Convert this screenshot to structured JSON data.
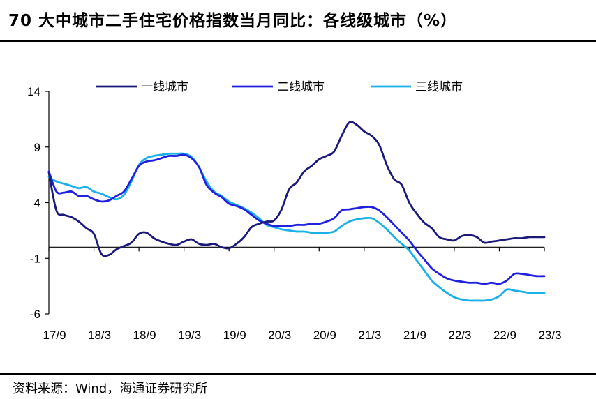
{
  "title": "70 大中城市二手住宅价格指数当月同比：各线级城市（%）",
  "source": "资料来源：Wind，海通证券研究所",
  "chart_data": {
    "type": "line",
    "title": "70 大中城市二手住宅价格指数当月同比：各线级城市（%）",
    "xlabel": "",
    "ylabel": "",
    "ylim": [
      -6,
      14
    ],
    "yticks": [
      14,
      9,
      4,
      -1,
      -6
    ],
    "x_tick_labels": [
      "17/9",
      "18/3",
      "18/9",
      "19/3",
      "19/9",
      "20/3",
      "20/9",
      "21/3",
      "21/9",
      "22/3",
      "22/9",
      "23/3"
    ],
    "x": [
      "17/9",
      "17/10",
      "17/11",
      "17/12",
      "18/1",
      "18/2",
      "18/3",
      "18/4",
      "18/5",
      "18/6",
      "18/7",
      "18/8",
      "18/9",
      "18/10",
      "18/11",
      "18/12",
      "19/1",
      "19/2",
      "19/3",
      "19/4",
      "19/5",
      "19/6",
      "19/7",
      "19/8",
      "19/9",
      "19/10",
      "19/11",
      "19/12",
      "20/1",
      "20/2",
      "20/3",
      "20/4",
      "20/5",
      "20/6",
      "20/7",
      "20/8",
      "20/9",
      "20/10",
      "20/11",
      "20/12",
      "21/1",
      "21/2",
      "21/3",
      "21/4",
      "21/5",
      "21/6",
      "21/7",
      "21/8",
      "21/9",
      "21/10",
      "21/11",
      "21/12",
      "22/1",
      "22/2",
      "22/3",
      "22/4",
      "22/5",
      "22/6",
      "22/7",
      "22/8",
      "22/9",
      "22/10",
      "22/11",
      "22/12",
      "23/1",
      "23/2",
      "23/3"
    ],
    "legend_position": "top",
    "series": [
      {
        "name": "一线城市",
        "color": "#1b1a7a",
        "values": [
          6.7,
          3.3,
          2.9,
          2.7,
          2.3,
          1.7,
          1.2,
          -0.6,
          -0.7,
          -0.2,
          0.1,
          0.4,
          1.2,
          1.3,
          0.8,
          0.5,
          0.3,
          0.2,
          0.5,
          0.7,
          0.3,
          0.2,
          0.3,
          0.0,
          -0.1,
          0.3,
          0.9,
          1.8,
          2.1,
          2.3,
          2.4,
          3.4,
          5.2,
          5.8,
          6.8,
          7.3,
          7.9,
          8.2,
          8.6,
          10.0,
          11.2,
          11.0,
          10.4,
          10.0,
          9.2,
          7.4,
          6.1,
          5.6,
          4.0,
          3.0,
          2.2,
          1.7,
          0.9,
          0.7,
          0.6,
          1.0,
          1.1,
          0.9,
          0.4,
          0.5,
          0.6,
          0.7,
          0.8,
          0.8,
          0.9,
          0.9,
          0.9
        ]
      },
      {
        "name": "二线城市",
        "color": "#2020e0",
        "values": [
          6.8,
          5.0,
          4.9,
          5.0,
          4.6,
          4.6,
          4.3,
          4.1,
          4.2,
          4.6,
          5.0,
          6.1,
          7.3,
          7.7,
          7.8,
          8.0,
          8.2,
          8.2,
          8.3,
          8.0,
          7.2,
          5.6,
          4.9,
          4.5,
          3.9,
          3.7,
          3.4,
          2.9,
          2.4,
          2.1,
          1.9,
          1.9,
          1.9,
          2.0,
          2.0,
          2.1,
          2.1,
          2.3,
          2.6,
          3.3,
          3.4,
          3.5,
          3.6,
          3.6,
          3.3,
          2.7,
          2.0,
          1.3,
          0.6,
          -0.3,
          -1.1,
          -1.9,
          -2.4,
          -2.8,
          -3.0,
          -3.1,
          -3.2,
          -3.2,
          -3.3,
          -3.2,
          -3.3,
          -3.0,
          -2.4,
          -2.4,
          -2.5,
          -2.6,
          -2.6
        ]
      },
      {
        "name": "三线城市",
        "color": "#1ab0e8",
        "values": [
          6.3,
          5.9,
          5.7,
          5.5,
          5.3,
          5.4,
          5.0,
          4.8,
          4.5,
          4.3,
          4.7,
          5.9,
          7.4,
          8.0,
          8.2,
          8.3,
          8.4,
          8.4,
          8.4,
          8.1,
          7.2,
          5.9,
          5.0,
          4.6,
          4.1,
          3.8,
          3.5,
          3.1,
          2.6,
          2.0,
          1.8,
          1.6,
          1.5,
          1.4,
          1.4,
          1.3,
          1.3,
          1.3,
          1.4,
          1.9,
          2.3,
          2.5,
          2.6,
          2.6,
          2.2,
          1.6,
          0.9,
          0.3,
          -0.3,
          -1.2,
          -2.1,
          -3.0,
          -3.6,
          -4.1,
          -4.5,
          -4.7,
          -4.8,
          -4.8,
          -4.8,
          -4.7,
          -4.4,
          -3.8,
          -3.9,
          -4.0,
          -4.1,
          -4.1,
          -4.1
        ]
      }
    ]
  }
}
